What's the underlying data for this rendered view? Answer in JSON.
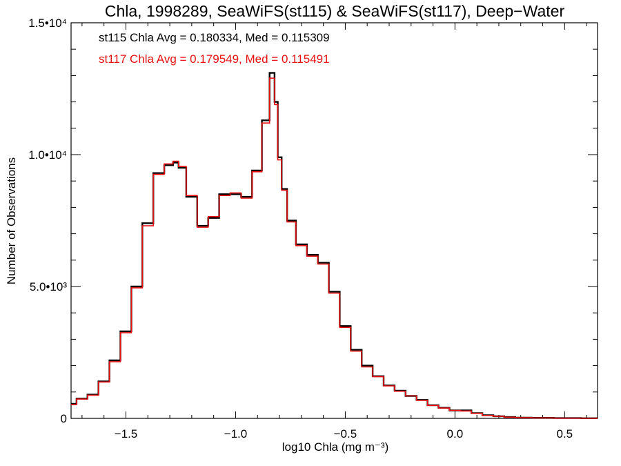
{
  "chart_data": {
    "type": "line",
    "title": "Chla, 1998289, SeaWiFS(st115) & SeaWiFS(st117), Deep−Water",
    "xlabel": "log10 Chla (mg m⁻³)",
    "ylabel": "Number of Observations",
    "xlim": [
      -1.75,
      0.65
    ],
    "ylim": [
      0,
      15000
    ],
    "x_ticks": [
      {
        "value": -1.5,
        "label": "−1.5"
      },
      {
        "value": -1.0,
        "label": "−1.0"
      },
      {
        "value": -0.5,
        "label": "−0.5"
      },
      {
        "value": 0.0,
        "label": "0.0"
      },
      {
        "value": 0.5,
        "label": "0.5"
      }
    ],
    "y_ticks": [
      {
        "value": 0,
        "label": "0"
      },
      {
        "value": 5000,
        "label": "5.0•10³"
      },
      {
        "value": 10000,
        "label": "1.0•10⁴"
      },
      {
        "value": 15000,
        "label": "1.5•10⁴"
      }
    ],
    "grid": false,
    "legend_location": "top-left",
    "series": [
      {
        "name": "st115 Chla Avg = 0.180334, Med = 0.115309",
        "color": "#000000",
        "x": [
          -1.75,
          -1.7,
          -1.65,
          -1.6,
          -1.55,
          -1.5,
          -1.45,
          -1.4,
          -1.35,
          -1.3,
          -1.27,
          -1.25,
          -1.2,
          -1.15,
          -1.1,
          -1.05,
          -1.0,
          -0.95,
          -0.9,
          -0.86,
          -0.83,
          -0.815,
          -0.8,
          -0.78,
          -0.75,
          -0.7,
          -0.65,
          -0.6,
          -0.55,
          -0.5,
          -0.45,
          -0.4,
          -0.35,
          -0.3,
          -0.25,
          -0.2,
          -0.15,
          -0.1,
          -0.05,
          0.0,
          0.05,
          0.1,
          0.15,
          0.2,
          0.25,
          0.3,
          0.4,
          0.5,
          0.65
        ],
        "y": [
          550,
          750,
          900,
          1400,
          2200,
          3300,
          5000,
          7400,
          9300,
          9600,
          9700,
          9500,
          8400,
          7300,
          7600,
          8500,
          8500,
          8400,
          9400,
          11300,
          13100,
          12000,
          9900,
          8700,
          7500,
          6600,
          6200,
          5900,
          4800,
          3500,
          2600,
          2000,
          1600,
          1250,
          1050,
          850,
          700,
          500,
          400,
          300,
          300,
          200,
          120,
          80,
          50,
          30,
          20,
          10,
          5
        ]
      },
      {
        "name": "st117 Chla Avg = 0.179549, Med = 0.115491",
        "color": "#e81010",
        "x": [
          -1.75,
          -1.7,
          -1.65,
          -1.6,
          -1.55,
          -1.5,
          -1.45,
          -1.4,
          -1.35,
          -1.3,
          -1.27,
          -1.25,
          -1.2,
          -1.15,
          -1.1,
          -1.05,
          -1.0,
          -0.95,
          -0.9,
          -0.86,
          -0.83,
          -0.815,
          -0.8,
          -0.78,
          -0.75,
          -0.7,
          -0.65,
          -0.6,
          -0.55,
          -0.5,
          -0.45,
          -0.4,
          -0.35,
          -0.3,
          -0.25,
          -0.2,
          -0.15,
          -0.1,
          -0.05,
          0.0,
          0.05,
          0.1,
          0.15,
          0.2,
          0.25,
          0.3,
          0.4,
          0.5,
          0.65
        ],
        "y": [
          520,
          730,
          880,
          1380,
          2150,
          3250,
          4950,
          7300,
          9250,
          9650,
          9750,
          9550,
          8450,
          7250,
          7650,
          8450,
          8550,
          8350,
          9350,
          11200,
          12900,
          11900,
          9800,
          8650,
          7450,
          6550,
          6150,
          5850,
          4750,
          3450,
          2550,
          1950,
          1580,
          1230,
          1030,
          850,
          680,
          490,
          390,
          300,
          280,
          190,
          110,
          75,
          45,
          28,
          18,
          9,
          4
        ]
      }
    ]
  }
}
